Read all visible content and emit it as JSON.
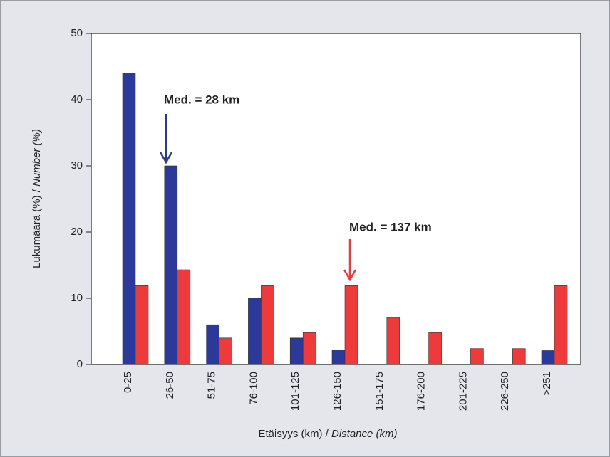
{
  "chart_data": {
    "type": "bar",
    "ylabel": {
      "text": "Lukumäärä  (%) / ",
      "italic": "Number (%)"
    },
    "xlabel": {
      "text": "Etäisyys (km) / ",
      "italic": "Distance (km)"
    },
    "categories": [
      "0-25",
      "26-50",
      "51-75",
      "76-100",
      "101-125",
      "126-150",
      "151-175",
      "176-200",
      "201-225",
      "226-250",
      ">251"
    ],
    "series": [
      {
        "color": "#2b3a9a",
        "values": [
          44,
          30,
          6,
          10,
          4,
          2.2,
          0,
          0,
          0,
          0,
          2.1
        ]
      },
      {
        "color": "#ee3a3a",
        "values": [
          11.9,
          14.3,
          4,
          11.9,
          4.8,
          11.9,
          7.1,
          4.8,
          2.4,
          2.4,
          11.9
        ]
      }
    ],
    "ylim": [
      0,
      50
    ],
    "yticks": [
      0,
      10,
      20,
      30,
      40,
      50
    ],
    "annotations": [
      {
        "text": "Med. = 28 km",
        "color": "#2b3a9a"
      },
      {
        "text": "Med. = 137 km",
        "color": "#ee3a3a"
      }
    ]
  }
}
